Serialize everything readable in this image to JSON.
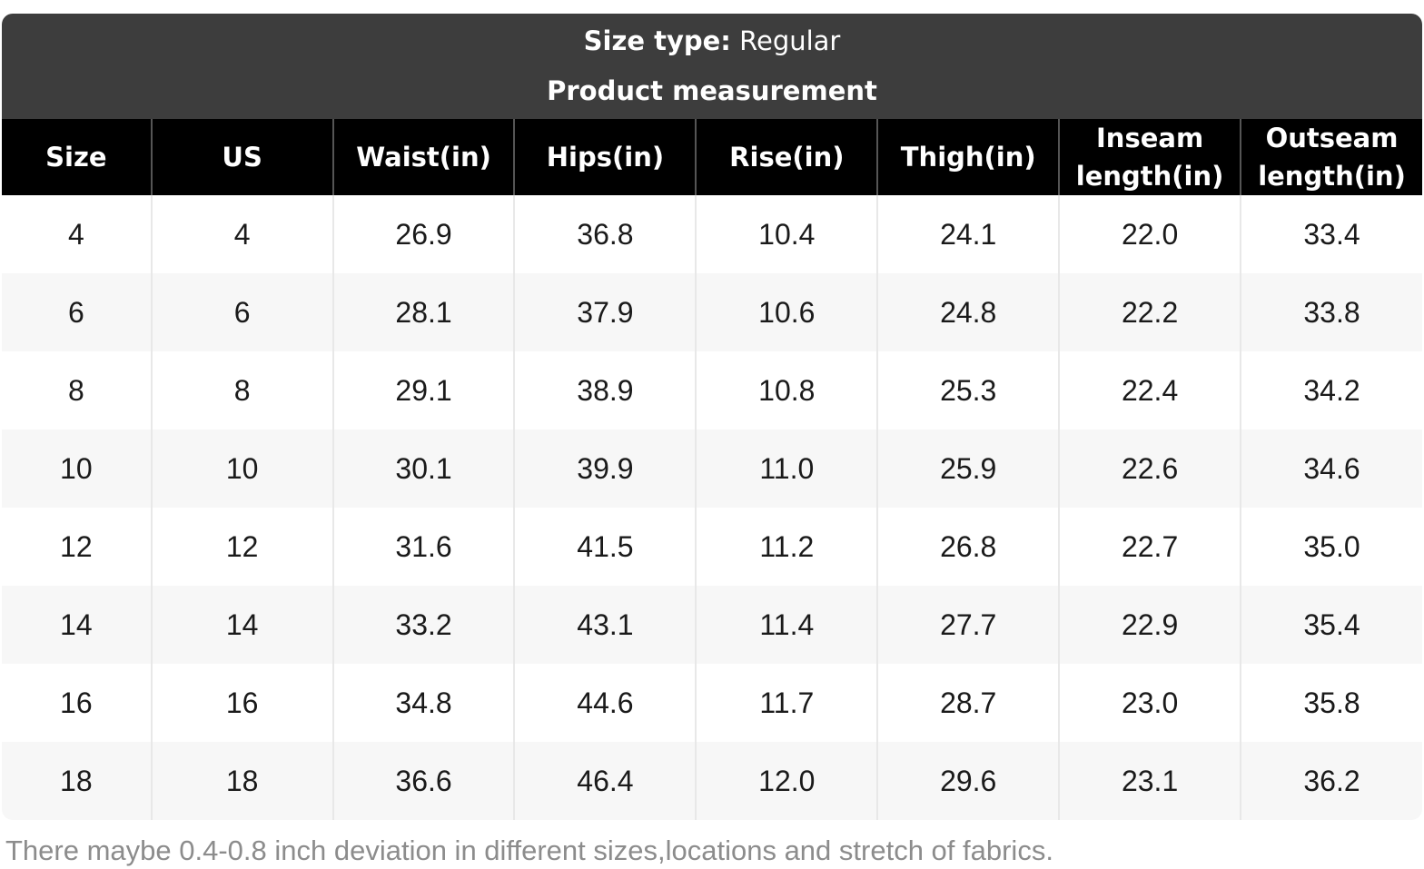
{
  "banner": {
    "size_type_label": "Size type:",
    "size_type_value": "Regular",
    "subtitle": "Product measurement"
  },
  "table": {
    "columns": [
      "Size",
      "US",
      "Waist(in)",
      "Hips(in)",
      "Rise(in)",
      "Thigh(in)",
      "Inseam length(in)",
      "Outseam length(in)"
    ],
    "rows": [
      [
        "4",
        "4",
        "26.9",
        "36.8",
        "10.4",
        "24.1",
        "22.0",
        "33.4"
      ],
      [
        "6",
        "6",
        "28.1",
        "37.9",
        "10.6",
        "24.8",
        "22.2",
        "33.8"
      ],
      [
        "8",
        "8",
        "29.1",
        "38.9",
        "10.8",
        "25.3",
        "22.4",
        "34.2"
      ],
      [
        "10",
        "10",
        "30.1",
        "39.9",
        "11.0",
        "25.9",
        "22.6",
        "34.6"
      ],
      [
        "12",
        "12",
        "31.6",
        "41.5",
        "11.2",
        "26.8",
        "22.7",
        "35.0"
      ],
      [
        "14",
        "14",
        "33.2",
        "43.1",
        "11.4",
        "27.7",
        "22.9",
        "35.4"
      ],
      [
        "16",
        "16",
        "34.8",
        "44.6",
        "11.7",
        "28.7",
        "23.0",
        "35.8"
      ],
      [
        "18",
        "18",
        "36.6",
        "46.4",
        "12.0",
        "29.6",
        "23.1",
        "36.2"
      ]
    ]
  },
  "footer": {
    "note": "There maybe 0.4-0.8 inch deviation in different sizes,locations and stretch of fabrics."
  },
  "colors": {
    "banner_bg": "#3d3d3d",
    "header_bg": "#000000",
    "header_text": "#ffffff",
    "header_separator": "#555555",
    "row_alt_bg": "#f7f7f7",
    "row_separator": "#e8e8e8",
    "cell_text": "#1a1a1a",
    "footnote_text": "#8c8c8c"
  }
}
